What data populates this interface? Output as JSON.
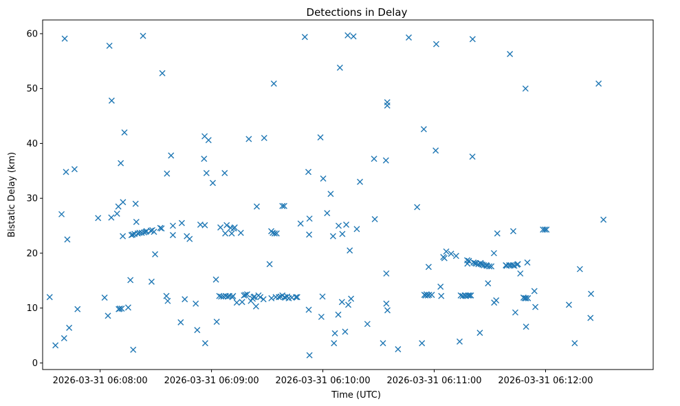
{
  "chart_data": {
    "type": "scatter",
    "title": "Detections in Delay",
    "xlabel": "Time (UTC)",
    "ylabel": "Bistatic Delay (km)",
    "marker": "x",
    "color": "#1f77b4",
    "xlim_seconds_from_060800": [
      -31,
      298
    ],
    "ylim": [
      -1.2,
      62.5
    ],
    "x_ticks": [
      {
        "value": 0,
        "label": "2026-03-31 06:08:00"
      },
      {
        "value": 60,
        "label": "2026-03-31 06:09:00"
      },
      {
        "value": 120,
        "label": "2026-03-31 06:10:00"
      },
      {
        "value": 180,
        "label": "2026-03-31 06:11:00"
      },
      {
        "value": 240,
        "label": "2026-03-31 06:12:00"
      }
    ],
    "y_ticks": [
      0,
      10,
      20,
      30,
      40,
      50,
      60
    ],
    "x_units": "seconds after 2026-03-31 06:08:00 UTC",
    "points": [
      [
        -27.2,
        12.0
      ],
      [
        -24.1,
        3.2
      ],
      [
        -20.8,
        27.1
      ],
      [
        -19.1,
        59.1
      ],
      [
        -18.4,
        34.8
      ],
      [
        -17.7,
        22.5
      ],
      [
        -16.7,
        6.4
      ],
      [
        -13.8,
        35.3
      ],
      [
        -12.2,
        9.8
      ],
      [
        -19.4,
        4.5
      ],
      [
        -1.1,
        26.4
      ],
      [
        2.4,
        11.9
      ],
      [
        4.2,
        8.6
      ],
      [
        5.0,
        57.8
      ],
      [
        6.0,
        26.5
      ],
      [
        6.2,
        47.8
      ],
      [
        9.1,
        27.2
      ],
      [
        9.8,
        28.5
      ],
      [
        10.0,
        9.8
      ],
      [
        10.6,
        9.9
      ],
      [
        11.1,
        36.4
      ],
      [
        11.6,
        9.9
      ],
      [
        12.2,
        23.1
      ],
      [
        12.3,
        29.3
      ],
      [
        13.1,
        42.0
      ],
      [
        15.1,
        10.1
      ],
      [
        16.3,
        15.1
      ],
      [
        16.9,
        23.3
      ],
      [
        17.5,
        23.4
      ],
      [
        17.8,
        2.4
      ],
      [
        18.5,
        23.5
      ],
      [
        19.1,
        29.0
      ],
      [
        19.5,
        25.7
      ],
      [
        20.3,
        23.6
      ],
      [
        21.2,
        23.7
      ],
      [
        22.4,
        23.7
      ],
      [
        23.1,
        59.6
      ],
      [
        23.7,
        23.8
      ],
      [
        24.5,
        23.9
      ],
      [
        25.0,
        24.0
      ],
      [
        27.3,
        24.1
      ],
      [
        27.7,
        14.8
      ],
      [
        28.1,
        24.2
      ],
      [
        29.0,
        23.9
      ],
      [
        29.6,
        19.8
      ],
      [
        32.4,
        24.6
      ],
      [
        33.1,
        24.5
      ],
      [
        33.5,
        52.8
      ],
      [
        35.7,
        12.2
      ],
      [
        36.0,
        34.5
      ],
      [
        36.4,
        11.3
      ],
      [
        38.2,
        37.8
      ],
      [
        39.2,
        25.0
      ],
      [
        39.2,
        23.3
      ],
      [
        43.4,
        7.4
      ],
      [
        44.0,
        25.5
      ],
      [
        45.6,
        11.6
      ],
      [
        46.7,
        23.1
      ],
      [
        48.2,
        22.6
      ],
      [
        51.5,
        10.8
      ],
      [
        52.3,
        6.0
      ],
      [
        54.0,
        25.2
      ],
      [
        56.3,
        41.3
      ],
      [
        56.0,
        37.2
      ],
      [
        56.4,
        25.1
      ],
      [
        56.6,
        3.6
      ],
      [
        57.3,
        34.6
      ],
      [
        58.4,
        40.6
      ],
      [
        60.7,
        32.8
      ],
      [
        62.4,
        15.2
      ],
      [
        62.8,
        7.5
      ],
      [
        64.2,
        12.2
      ],
      [
        64.8,
        24.7
      ],
      [
        65.2,
        12.1
      ],
      [
        66.4,
        12.1
      ],
      [
        67.1,
        34.6
      ],
      [
        67.4,
        23.6
      ],
      [
        67.7,
        12.2
      ],
      [
        68.2,
        25.1
      ],
      [
        68.8,
        12.1
      ],
      [
        69.6,
        12.2
      ],
      [
        70.3,
        24.6
      ],
      [
        70.9,
        23.6
      ],
      [
        71.2,
        12.0
      ],
      [
        71.6,
        12.2
      ],
      [
        72.0,
        24.5
      ],
      [
        72.5,
        24.7
      ],
      [
        73.6,
        11.0
      ],
      [
        75.8,
        23.7
      ],
      [
        76.5,
        11.1
      ],
      [
        77.5,
        12.3
      ],
      [
        78.2,
        12.4
      ],
      [
        79.2,
        12.5
      ],
      [
        80.1,
        40.8
      ],
      [
        81.2,
        11.3
      ],
      [
        82.2,
        11.7
      ],
      [
        82.7,
        12.0
      ],
      [
        83.2,
        12.1
      ],
      [
        84.0,
        10.3
      ],
      [
        84.4,
        28.5
      ],
      [
        85.3,
        12.3
      ],
      [
        86.3,
        12.0
      ],
      [
        88.0,
        11.6
      ],
      [
        88.4,
        41.0
      ],
      [
        91.3,
        18.0
      ],
      [
        92.2,
        24.0
      ],
      [
        92.3,
        11.8
      ],
      [
        93.0,
        23.7
      ],
      [
        93.6,
        50.9
      ],
      [
        94.0,
        23.6
      ],
      [
        94.6,
        12.0
      ],
      [
        95.1,
        23.6
      ],
      [
        96.3,
        12.0
      ],
      [
        97.3,
        12.1
      ],
      [
        98.2,
        12.3
      ],
      [
        98.2,
        28.6
      ],
      [
        99.2,
        28.6
      ],
      [
        99.5,
        12.0
      ],
      [
        99.7,
        11.9
      ],
      [
        100.8,
        12.1
      ],
      [
        101.6,
        11.8
      ],
      [
        103.3,
        11.9
      ],
      [
        105.5,
        12.0
      ],
      [
        106.2,
        12.0
      ],
      [
        108.0,
        25.4
      ],
      [
        110.3,
        59.4
      ],
      [
        112.2,
        34.8
      ],
      [
        112.4,
        9.7
      ],
      [
        112.6,
        23.4
      ],
      [
        112.8,
        26.3
      ],
      [
        112.8,
        1.4
      ],
      [
        118.7,
        41.1
      ],
      [
        119.2,
        8.4
      ],
      [
        119.8,
        12.1
      ],
      [
        120.2,
        33.6
      ],
      [
        122.3,
        27.3
      ],
      [
        124.2,
        30.8
      ],
      [
        125.5,
        23.1
      ],
      [
        126.0,
        3.6
      ],
      [
        126.5,
        5.4
      ],
      [
        128.3,
        8.8
      ],
      [
        128.5,
        25.0
      ],
      [
        129.2,
        53.8
      ],
      [
        130.3,
        11.1
      ],
      [
        130.5,
        23.5
      ],
      [
        132.0,
        5.7
      ],
      [
        132.6,
        25.2
      ],
      [
        133.4,
        59.7
      ],
      [
        133.7,
        10.6
      ],
      [
        134.5,
        20.5
      ],
      [
        135.2,
        11.7
      ],
      [
        136.5,
        59.5
      ],
      [
        138.3,
        24.4
      ],
      [
        140.0,
        33.0
      ],
      [
        144.0,
        7.1
      ],
      [
        147.6,
        37.2
      ],
      [
        148.0,
        26.2
      ],
      [
        152.4,
        3.6
      ],
      [
        154.0,
        36.9
      ],
      [
        154.2,
        16.3
      ],
      [
        154.2,
        10.8
      ],
      [
        154.7,
        47.5
      ],
      [
        154.7,
        46.9
      ],
      [
        154.8,
        9.6
      ],
      [
        160.5,
        2.5
      ],
      [
        166.3,
        59.3
      ],
      [
        170.8,
        28.4
      ],
      [
        173.4,
        3.6
      ],
      [
        174.4,
        42.6
      ],
      [
        174.7,
        12.4
      ],
      [
        175.3,
        12.3
      ],
      [
        175.9,
        12.5
      ],
      [
        176.5,
        12.3
      ],
      [
        177.0,
        17.5
      ],
      [
        177.3,
        12.4
      ],
      [
        178.7,
        12.4
      ],
      [
        180.8,
        38.7
      ],
      [
        181.1,
        58.1
      ],
      [
        183.4,
        13.9
      ],
      [
        183.8,
        12.2
      ],
      [
        184.9,
        19.3
      ],
      [
        185.5,
        19.1
      ],
      [
        186.5,
        20.3
      ],
      [
        189.1,
        19.9
      ],
      [
        191.8,
        19.5
      ],
      [
        193.7,
        3.9
      ],
      [
        194.3,
        12.3
      ],
      [
        195.3,
        12.2
      ],
      [
        196.5,
        12.3
      ],
      [
        197.1,
        12.2
      ],
      [
        197.8,
        18.7
      ],
      [
        197.9,
        18.1
      ],
      [
        198.3,
        12.3
      ],
      [
        198.7,
        18.6
      ],
      [
        199.0,
        12.3
      ],
      [
        199.8,
        12.3
      ],
      [
        200.6,
        37.6
      ],
      [
        200.7,
        59.0
      ],
      [
        201.2,
        18.3
      ],
      [
        202.0,
        18.2
      ],
      [
        202.6,
        18.1
      ],
      [
        203.8,
        18.0
      ],
      [
        204.6,
        5.5
      ],
      [
        205.0,
        18.2
      ],
      [
        205.3,
        18.0
      ],
      [
        206.0,
        17.9
      ],
      [
        206.8,
        17.8
      ],
      [
        208.0,
        17.8
      ],
      [
        208.5,
        17.7
      ],
      [
        209.0,
        14.5
      ],
      [
        209.7,
        17.6
      ],
      [
        210.8,
        17.6
      ],
      [
        212.2,
        20.0
      ],
      [
        212.3,
        11.0
      ],
      [
        213.4,
        11.4
      ],
      [
        214.0,
        23.6
      ],
      [
        218.6,
        17.8
      ],
      [
        219.0,
        17.7
      ],
      [
        220.4,
        17.8
      ],
      [
        220.8,
        56.3
      ],
      [
        221.3,
        17.8
      ],
      [
        222.4,
        17.8
      ],
      [
        222.6,
        24.0
      ],
      [
        223.2,
        17.7
      ],
      [
        223.7,
        9.2
      ],
      [
        224.6,
        17.9
      ],
      [
        225.1,
        18.0
      ],
      [
        226.4,
        16.3
      ],
      [
        228.1,
        11.9
      ],
      [
        228.8,
        11.8
      ],
      [
        229.2,
        50.0
      ],
      [
        229.5,
        6.6
      ],
      [
        229.5,
        11.8
      ],
      [
        230.2,
        18.3
      ],
      [
        230.5,
        11.8
      ],
      [
        234.0,
        13.1
      ],
      [
        234.5,
        10.2
      ],
      [
        238.6,
        24.3
      ],
      [
        239.6,
        24.3
      ],
      [
        240.5,
        24.3
      ],
      [
        252.6,
        10.6
      ],
      [
        255.7,
        3.6
      ],
      [
        258.5,
        17.1
      ],
      [
        264.2,
        8.2
      ],
      [
        264.5,
        12.6
      ],
      [
        268.6,
        50.9
      ],
      [
        271.2,
        26.1
      ]
    ]
  }
}
